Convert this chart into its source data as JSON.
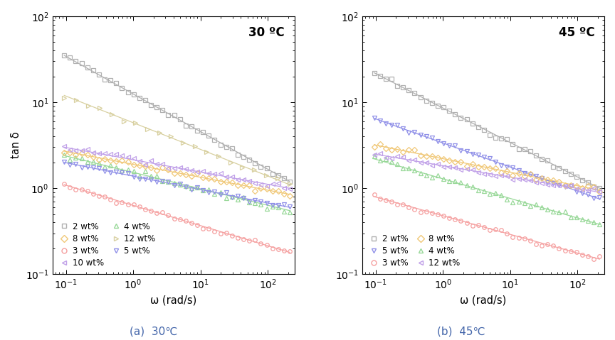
{
  "panel_a": {
    "title": "30 ºC",
    "series": [
      {
        "label": "2 wt%",
        "color": "#b0b0b0",
        "marker": "s",
        "y0": 35.0,
        "y1": 1.2,
        "n": 40
      },
      {
        "label": "3 wt%",
        "color": "#f5a0a0",
        "marker": "o",
        "y0": 1.1,
        "y1": 0.18,
        "n": 40
      },
      {
        "label": "4 wt%",
        "color": "#98d898",
        "marker": "^",
        "y0": 2.4,
        "y1": 0.55,
        "n": 40
      },
      {
        "label": "5 wt%",
        "color": "#9090e8",
        "marker": "v",
        "y0": 2.0,
        "y1": 0.6,
        "n": 40
      },
      {
        "label": "8 wt%",
        "color": "#f0c878",
        "marker": "D",
        "y0": 2.7,
        "y1": 0.85,
        "n": 40
      },
      {
        "label": "10 wt%",
        "color": "#c0a0e8",
        "marker": "<",
        "y0": 3.0,
        "y1": 1.0,
        "n": 40
      },
      {
        "label": "12 wt%",
        "color": "#d8d0a0",
        "marker": ">",
        "y0": 12.0,
        "y1": 1.1,
        "n": 20
      }
    ],
    "legend_col1": [
      "2 wt%",
      "3 wt%",
      "4 wt%",
      "5 wt%"
    ],
    "legend_col2": [
      "8 wt%",
      "10 wt%",
      "12 wt%"
    ]
  },
  "panel_b": {
    "title": "45 ºC",
    "series": [
      {
        "label": "2 wt%",
        "color": "#b0b0b0",
        "marker": "s",
        "y0": 22.0,
        "y1": 1.0,
        "n": 40
      },
      {
        "label": "3 wt%",
        "color": "#f5a0a0",
        "marker": "o",
        "y0": 0.8,
        "y1": 0.15,
        "n": 40
      },
      {
        "label": "4 wt%",
        "color": "#98d898",
        "marker": "^",
        "y0": 2.2,
        "y1": 0.38,
        "n": 40
      },
      {
        "label": "5 wt%",
        "color": "#9090e8",
        "marker": "v",
        "y0": 6.5,
        "y1": 0.75,
        "n": 40
      },
      {
        "label": "8 wt%",
        "color": "#f0c878",
        "marker": "D",
        "y0": 3.2,
        "y1": 0.95,
        "n": 40
      },
      {
        "label": "12 wt%",
        "color": "#c0a0e8",
        "marker": "<",
        "y0": 2.5,
        "y1": 0.9,
        "n": 40
      }
    ],
    "legend_col1": [
      "2 wt%",
      "3 wt%",
      "4 wt%"
    ],
    "legend_col2": [
      "5 wt%",
      "8 wt%",
      "12 wt%"
    ]
  },
  "xlabel": "ω (rad/s)",
  "ylabel": "tan δ",
  "xlim": [
    0.063,
    250
  ],
  "ylim": [
    0.1,
    100
  ],
  "caption_a": "(a)  30℃",
  "caption_b": "(b)  45℃",
  "background_color": "#ffffff"
}
